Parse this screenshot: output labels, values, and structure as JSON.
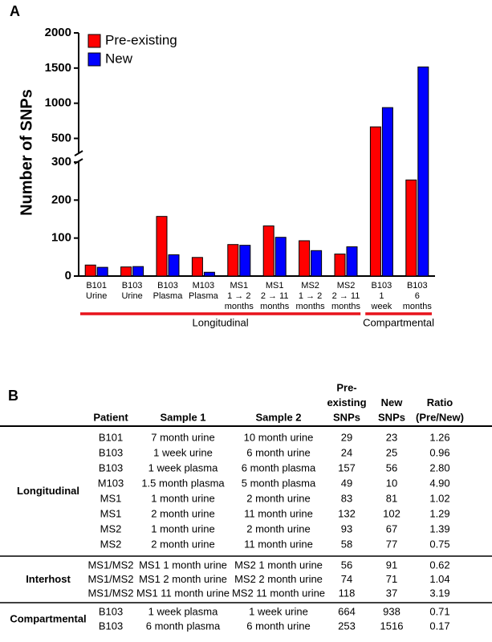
{
  "panel_labels": [
    "A",
    "B"
  ],
  "chart_data": {
    "type": "bar",
    "y_label": "Number of SNPs",
    "categories": [
      [
        "B101",
        "Urine"
      ],
      [
        "B103",
        "Urine"
      ],
      [
        "B103",
        "Plasma"
      ],
      [
        "M103",
        "Plasma"
      ],
      [
        "MS1",
        "1 → 2",
        "months"
      ],
      [
        "MS1",
        "2 → 11",
        "months"
      ],
      [
        "MS2",
        "1 → 2",
        "months"
      ],
      [
        "MS2",
        "2 → 11",
        "months"
      ],
      [
        "B103",
        "1",
        "week"
      ],
      [
        "B103",
        "6",
        "months"
      ]
    ],
    "category_groups": [
      "Longitudinal",
      "Longitudinal",
      "Longitudinal",
      "Longitudinal",
      "Longitudinal",
      "Longitudinal",
      "Longitudinal",
      "Longitudinal",
      "Compartmental",
      "Compartmental"
    ],
    "group_color": "#e8141c",
    "series": [
      {
        "name": "Pre-existing",
        "color": "#ff0000",
        "values": [
          29,
          24,
          157,
          49,
          83,
          132,
          93,
          58,
          664,
          253
        ]
      },
      {
        "name": "New",
        "color": "#0000ff",
        "values": [
          23,
          25,
          56,
          10,
          81,
          102,
          67,
          77,
          938,
          1516
        ]
      }
    ],
    "y_segments": [
      {
        "ylim": [
          0,
          300
        ],
        "yticks": [
          0,
          100,
          200,
          300
        ]
      },
      {
        "ylim": [
          300,
          2000
        ],
        "yticks": [
          500,
          1000,
          1500,
          2000
        ]
      }
    ],
    "legend": "top-left"
  },
  "table": {
    "headers": [
      [
        "Patient"
      ],
      [
        "Sample 1"
      ],
      [
        "Sample 2"
      ],
      [
        "Pre-",
        "existing",
        "SNPs"
      ],
      [
        "New",
        "SNPs"
      ],
      [
        "Ratio",
        "(Pre/New)"
      ]
    ],
    "sections": [
      {
        "name": "Longitudinal",
        "rows": [
          [
            "B101",
            "7 month urine",
            "10 month urine",
            29,
            23,
            "1.26"
          ],
          [
            "B103",
            "1 week urine",
            "6 month urine",
            24,
            25,
            "0.96"
          ],
          [
            "B103",
            "1 week plasma",
            "6 month plasma",
            157,
            56,
            "2.80"
          ],
          [
            "M103",
            "1.5 month plasma",
            "5 month plasma",
            49,
            10,
            "4.90"
          ],
          [
            "MS1",
            "1 month urine",
            "2 month urine",
            83,
            81,
            "1.02"
          ],
          [
            "MS1",
            "2 month urine",
            "11 month urine",
            132,
            102,
            "1.29"
          ],
          [
            "MS2",
            "1 month urine",
            "2 month urine",
            93,
            67,
            "1.39"
          ],
          [
            "MS2",
            "2 month urine",
            "11 month urine",
            58,
            77,
            "0.75"
          ]
        ]
      },
      {
        "name": "Interhost",
        "rows": [
          [
            "MS1/MS2",
            "MS1 1 month urine",
            "MS2 1 month urine",
            56,
            91,
            "0.62"
          ],
          [
            "MS1/MS2",
            "MS1 2 month urine",
            "MS2 2 month urine",
            74,
            71,
            "1.04"
          ],
          [
            "MS1/MS2",
            "MS1 11 month urine",
            "MS2 11 month urine",
            118,
            37,
            "3.19"
          ]
        ]
      },
      {
        "name": "Compartmental",
        "rows": [
          [
            "B103",
            "1 week plasma",
            "1 week urine",
            664,
            938,
            "0.71"
          ],
          [
            "B103",
            "6 month plasma",
            "6 month urine",
            253,
            1516,
            "0.17"
          ]
        ]
      }
    ]
  }
}
